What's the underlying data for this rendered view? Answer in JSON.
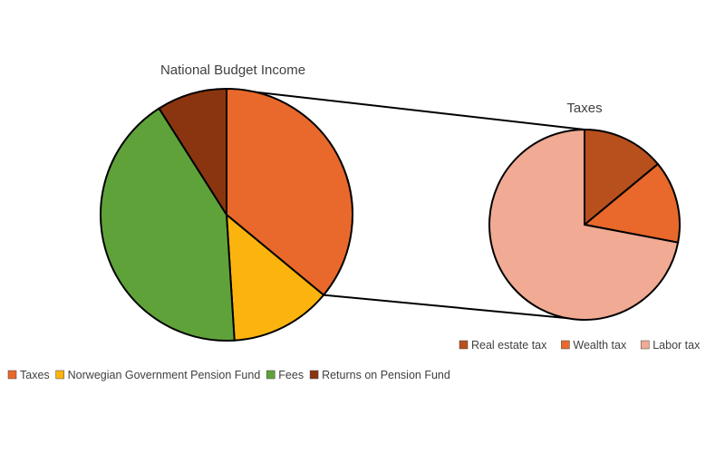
{
  "chart_data": [
    {
      "type": "pie",
      "title": "National Budget Income",
      "slices": [
        {
          "label": "Taxes",
          "value": 36,
          "color": "#E8692B"
        },
        {
          "label": "Norwegian Government Pension Fund",
          "value": 13,
          "color": "#FBB40E"
        },
        {
          "label": "Fees",
          "value": 42,
          "color": "#5FA23A"
        },
        {
          "label": "Returns on Pension Fund",
          "value": 9,
          "color": "#8B3510"
        }
      ],
      "legend_position": "bottom-left",
      "exploded_slice": "Taxes"
    },
    {
      "type": "pie",
      "title": "Taxes",
      "slices": [
        {
          "label": "Real estate tax",
          "value": 14,
          "color": "#B8501E"
        },
        {
          "label": "Wealth tax",
          "value": 14,
          "color": "#E8692B"
        },
        {
          "label": "Labor tax",
          "value": 72,
          "color": "#F1AA93"
        }
      ],
      "legend_position": "bottom"
    }
  ]
}
